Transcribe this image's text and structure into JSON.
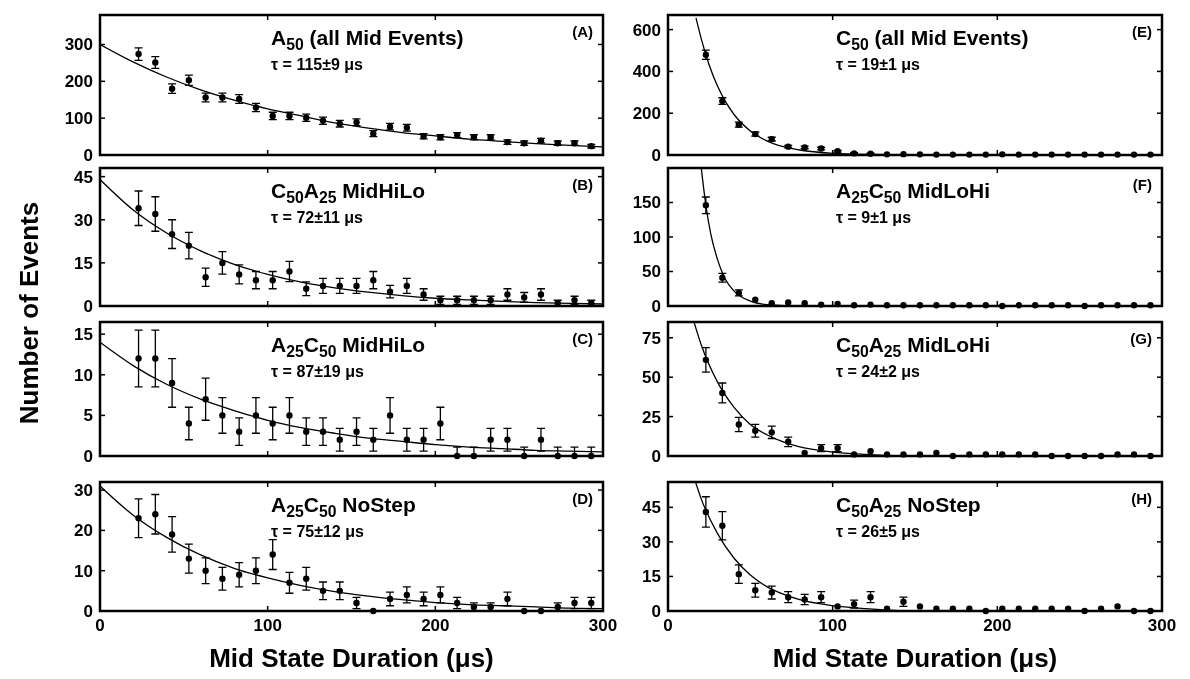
{
  "chart_data": [
    {
      "type": "scatter",
      "title": "A$_{50}$ (all Mid Events)",
      "ylabel": "Number of Events",
      "annotations": [
        "τ = 115±9 μs",
        "(A)"
      ],
      "xlim": [
        0,
        300
      ],
      "xticks": [
        0,
        100,
        200,
        300
      ],
      "ylim": [
        0,
        380
      ],
      "yticks": [
        0,
        100,
        200,
        300
      ],
      "tick_labels": "y",
      "grid": false,
      "x": [
        23,
        33,
        43,
        53,
        63,
        73,
        83,
        93,
        103,
        113,
        123,
        133,
        143,
        153,
        163,
        173,
        183,
        193,
        203,
        213,
        223,
        233,
        243,
        253,
        263,
        273,
        283,
        293
      ],
      "series": [
        {
          "type": "scatter",
          "marker": "circle",
          "color": "#000000",
          "values": [
            274,
            251,
            180,
            203,
            156,
            156,
            152,
            129,
            106,
            106,
            101,
            93,
            85,
            89,
            58,
            77,
            74,
            51,
            48,
            54,
            48,
            48,
            35,
            32,
            39,
            32,
            32,
            24
          ],
          "errors": [
            17,
            16,
            13,
            14,
            12,
            12,
            12,
            11,
            10,
            10,
            10,
            10,
            9,
            9,
            8,
            9,
            9,
            7,
            7,
            7,
            7,
            7,
            6,
            6,
            6,
            6,
            6,
            5
          ]
        },
        {
          "type": "line",
          "marker": "none",
          "color": "#000000",
          "x": [
            0,
            20,
            40,
            60,
            80,
            100,
            120,
            140,
            160,
            180,
            200,
            220,
            240,
            260,
            280,
            300
          ],
          "values": [
            300,
            252,
            211,
            177,
            149,
            125,
            106,
            87,
            73,
            61,
            52,
            43,
            37,
            31,
            26,
            22
          ]
        }
      ]
    },
    {
      "type": "scatter",
      "title": "C$_{50}$A$_{25}$ MidHiLo",
      "annotations": [
        "τ = 72±11 μs",
        "(B)"
      ],
      "xlim": [
        0,
        300
      ],
      "xticks": [
        0,
        100,
        200,
        300
      ],
      "ylim": [
        0,
        48
      ],
      "yticks": [
        0,
        15,
        30,
        45
      ],
      "tick_labels": "y",
      "grid": false,
      "x": [
        23,
        33,
        43,
        53,
        63,
        73,
        83,
        93,
        103,
        113,
        123,
        133,
        143,
        153,
        163,
        173,
        183,
        193,
        203,
        213,
        223,
        233,
        243,
        253,
        263,
        273,
        283,
        293
      ],
      "series": [
        {
          "type": "scatter",
          "marker": "circle",
          "color": "#000000",
          "values": [
            34,
            32,
            25,
            21,
            10,
            15,
            11,
            9,
            9,
            12,
            6,
            7,
            7,
            7,
            9,
            5,
            7,
            4,
            2,
            2,
            2,
            2,
            4,
            3,
            4,
            1,
            2,
            1
          ],
          "errors": [
            6,
            6,
            5,
            4.6,
            3.2,
            3.9,
            3.3,
            3,
            3,
            3.5,
            2.4,
            2.6,
            2.6,
            2.6,
            3,
            2.2,
            2.6,
            2,
            1.4,
            1.4,
            1.4,
            1.4,
            2,
            1.7,
            2,
            1,
            1.4,
            1
          ]
        },
        {
          "type": "line",
          "marker": "none",
          "color": "#000000",
          "x": [
            0,
            20,
            40,
            60,
            80,
            100,
            120,
            140,
            160,
            180,
            200,
            220,
            240,
            260,
            280,
            300
          ],
          "values": [
            44,
            33.3,
            25.3,
            19.2,
            14.5,
            11,
            8.3,
            6.3,
            4.8,
            3.6,
            2.7,
            2.1,
            1.6,
            1.2,
            0.9,
            0.7
          ]
        }
      ]
    },
    {
      "type": "scatter",
      "title": "A$_{25}$C$_{50}$ MidHiLo",
      "annotations": [
        "τ = 87±19 μs",
        "(C)"
      ],
      "xlim": [
        0,
        300
      ],
      "xticks": [
        0,
        100,
        200,
        300
      ],
      "ylim": [
        0,
        16.5
      ],
      "yticks": [
        0,
        5,
        10,
        15
      ],
      "tick_labels": "y",
      "grid": false,
      "x": [
        23,
        33,
        43,
        53,
        63,
        73,
        83,
        93,
        103,
        113,
        123,
        133,
        143,
        153,
        163,
        173,
        183,
        193,
        203,
        213,
        223,
        233,
        243,
        253,
        263,
        273,
        283,
        293
      ],
      "series": [
        {
          "type": "scatter",
          "marker": "circle",
          "color": "#000000",
          "values": [
            12,
            12,
            9,
            4,
            7,
            5,
            3,
            5,
            4,
            5,
            3,
            3,
            2,
            3,
            2,
            5,
            2,
            2,
            4,
            0,
            0,
            2,
            2,
            0,
            2,
            0,
            0,
            0
          ],
          "errors": [
            3.5,
            3.5,
            3,
            2,
            2.6,
            2.2,
            1.7,
            2.2,
            2,
            2.2,
            1.7,
            1.7,
            1.4,
            1.7,
            1.4,
            2.2,
            1.4,
            1.4,
            2,
            [
              0,
              1.1
            ],
            [
              0,
              1.1
            ],
            1.4,
            1.4,
            [
              0,
              1.1
            ],
            1.4,
            [
              0,
              1.1
            ],
            [
              0,
              1.1
            ],
            [
              0,
              1.1
            ]
          ]
        },
        {
          "type": "line",
          "marker": "none",
          "color": "#000000",
          "x": [
            0,
            20,
            40,
            60,
            80,
            100,
            120,
            140,
            160,
            180,
            200,
            220,
            240,
            260,
            280,
            300
          ],
          "values": [
            14,
            11.1,
            8.8,
            7,
            5.6,
            4.4,
            3.5,
            2.8,
            2.2,
            1.8,
            1.4,
            1.1,
            0.9,
            0.7,
            0.6,
            0.5
          ]
        }
      ]
    },
    {
      "type": "scatter",
      "title": "A$_{25}$C$_{50}$ NoStep",
      "xlabel": "Mid State Duration (μs)",
      "annotations": [
        "τ = 75±12 μs",
        "(D)"
      ],
      "xlim": [
        0,
        300
      ],
      "xticks": [
        0,
        100,
        200,
        300
      ],
      "ylim": [
        0,
        32
      ],
      "yticks": [
        0,
        10,
        20,
        30
      ],
      "grid": false,
      "x": [
        23,
        33,
        43,
        53,
        63,
        73,
        83,
        93,
        103,
        113,
        123,
        133,
        143,
        153,
        163,
        173,
        183,
        193,
        203,
        213,
        223,
        233,
        243,
        253,
        263,
        273,
        283,
        293
      ],
      "series": [
        {
          "type": "scatter",
          "marker": "circle",
          "color": "#000000",
          "values": [
            23,
            24,
            19,
            13,
            10,
            8,
            9,
            10,
            14,
            7,
            8,
            5,
            5,
            2,
            0,
            3,
            4,
            3,
            4,
            2,
            1,
            1,
            3,
            0,
            0,
            1,
            2,
            2
          ],
          "errors": [
            4.8,
            4.9,
            4.4,
            3.6,
            3.2,
            2.8,
            3,
            3.2,
            3.7,
            2.6,
            2.8,
            2.2,
            2.2,
            1.4,
            null,
            1.7,
            2,
            1.7,
            2,
            1.4,
            1,
            1,
            1.7,
            null,
            null,
            1,
            1.4,
            1.4
          ]
        },
        {
          "type": "line",
          "marker": "none",
          "color": "#000000",
          "x": [
            0,
            20,
            40,
            60,
            80,
            100,
            120,
            140,
            160,
            180,
            200,
            220,
            240,
            260,
            280,
            300
          ],
          "values": [
            31,
            23.7,
            18.2,
            13.9,
            10.6,
            8.2,
            6.3,
            4.8,
            3.7,
            2.8,
            2.1,
            1.6,
            1.3,
            1,
            0.7,
            0.6
          ]
        }
      ]
    },
    {
      "type": "scatter",
      "title": "C$_{50}$ (all Mid Events)",
      "annotations": [
        "τ = 19±1 μs",
        "(E)"
      ],
      "xlim": [
        0,
        300
      ],
      "xticks": [
        0,
        100,
        200,
        300
      ],
      "ylim": [
        0,
        670
      ],
      "yticks": [
        0,
        200,
        400,
        600
      ],
      "tick_labels": "y",
      "grid": false,
      "x": [
        23,
        33,
        43,
        53,
        63,
        73,
        83,
        93,
        103,
        113,
        123,
        133,
        143,
        153,
        163,
        173,
        183,
        193,
        203,
        213,
        223,
        233,
        243,
        253,
        263,
        273,
        283,
        293
      ],
      "series": [
        {
          "type": "scatter",
          "marker": "circle",
          "color": "#000000",
          "values": [
            480,
            258,
            145,
            100,
            76,
            40,
            36,
            31,
            18,
            8,
            6,
            3,
            4,
            3,
            2,
            2,
            2,
            2,
            3,
            2,
            2,
            2,
            2,
            2,
            2,
            2,
            2,
            2
          ],
          "errors": [
            22,
            16,
            12,
            10,
            9,
            6,
            6,
            6,
            4,
            3,
            2.5,
            null,
            null,
            null,
            null,
            null,
            null,
            null,
            null,
            null,
            null,
            null,
            null,
            null,
            null,
            null,
            null,
            null
          ]
        },
        {
          "type": "line",
          "marker": "none",
          "color": "#000000",
          "x": [
            17,
            20,
            25,
            30,
            35,
            40,
            50,
            60,
            70,
            80,
            100,
            120,
            150,
            200,
            300
          ],
          "values": [
            656,
            562,
            431,
            331,
            254,
            195,
            115,
            68,
            40,
            24,
            8,
            3,
            1,
            0,
            0
          ]
        }
      ]
    },
    {
      "type": "scatter",
      "title": "A$_{25}$C$_{50}$ MidLoHi",
      "annotations": [
        "τ = 9±1 μs",
        "(F)"
      ],
      "xlim": [
        0,
        300
      ],
      "xticks": [
        0,
        100,
        200,
        300
      ],
      "ylim": [
        0,
        200
      ],
      "yticks": [
        0,
        50,
        100,
        150
      ],
      "tick_labels": "y",
      "grid": false,
      "x": [
        23,
        33,
        43,
        53,
        63,
        73,
        83,
        93,
        103,
        113,
        123,
        133,
        143,
        153,
        163,
        173,
        183,
        193,
        203,
        213,
        223,
        233,
        243,
        253,
        263,
        273,
        283,
        293
      ],
      "series": [
        {
          "type": "scatter",
          "marker": "circle",
          "color": "#000000",
          "values": [
            146,
            41,
            19,
            9,
            4,
            5,
            4,
            2,
            3,
            1,
            2,
            1,
            1,
            1,
            1,
            1,
            1,
            1,
            0,
            1,
            1,
            1,
            1,
            0,
            1,
            1,
            1,
            1
          ],
          "errors": [
            12,
            6.4,
            4.4,
            null,
            null,
            null,
            null,
            null,
            null,
            null,
            null,
            null,
            null,
            null,
            null,
            null,
            null,
            null,
            null,
            null,
            null,
            null,
            null,
            null,
            null,
            null,
            null,
            null
          ]
        },
        {
          "type": "line",
          "marker": "none",
          "color": "#000000",
          "x": [
            20.2,
            23,
            26,
            30,
            35,
            40,
            50,
            60,
            80,
            100,
            300
          ],
          "values": [
            200,
            146,
            104,
            68,
            38,
            22,
            7,
            2,
            0,
            0,
            0
          ]
        }
      ]
    },
    {
      "type": "scatter",
      "title": "C$_{50}$A$_{25}$ MidLoHi",
      "annotations": [
        "τ = 24±2 μs",
        "(G)"
      ],
      "xlim": [
        0,
        300
      ],
      "xticks": [
        0,
        100,
        200,
        300
      ],
      "ylim": [
        0,
        85
      ],
      "yticks": [
        0,
        25,
        50,
        75
      ],
      "tick_labels": "y",
      "grid": false,
      "x": [
        23,
        33,
        43,
        53,
        63,
        73,
        83,
        93,
        103,
        113,
        123,
        133,
        143,
        153,
        163,
        173,
        183,
        193,
        203,
        213,
        223,
        233,
        243,
        253,
        263,
        273,
        283,
        293
      ],
      "series": [
        {
          "type": "scatter",
          "marker": "circle",
          "color": "#000000",
          "values": [
            61,
            40,
            20,
            16,
            15,
            9,
            2,
            5,
            5,
            1,
            3,
            1,
            1,
            1,
            2,
            0,
            1,
            1,
            1,
            1,
            1,
            0,
            0,
            0,
            0,
            1,
            1,
            0
          ],
          "errors": [
            7.8,
            6.3,
            4.5,
            4,
            3.9,
            3,
            null,
            2.2,
            2.2,
            null,
            null,
            null,
            null,
            null,
            null,
            null,
            null,
            null,
            null,
            null,
            null,
            null,
            null,
            null,
            null,
            null,
            null,
            null
          ]
        },
        {
          "type": "line",
          "marker": "none",
          "color": "#000000",
          "x": [
            15.8,
            20,
            30,
            40,
            50,
            60,
            70,
            80,
            100,
            120,
            150,
            200,
            300
          ],
          "values": [
            85,
            71,
            47,
            31,
            20,
            13.5,
            8.9,
            5.8,
            2.5,
            1,
            0,
            0,
            0
          ]
        }
      ]
    },
    {
      "type": "scatter",
      "title": "C$_{50}$A$_{25}$ NoStep",
      "xlabel": "Mid State Duration (μs)",
      "annotations": [
        "τ = 26±5 μs",
        "(H)"
      ],
      "xlim": [
        0,
        300
      ],
      "xticks": [
        0,
        100,
        200,
        300
      ],
      "ylim": [
        0,
        56
      ],
      "yticks": [
        0,
        15,
        30,
        45
      ],
      "grid": false,
      "x": [
        23,
        33,
        43,
        53,
        63,
        73,
        83,
        93,
        103,
        113,
        123,
        133,
        143,
        153,
        163,
        173,
        183,
        193,
        203,
        213,
        223,
        233,
        243,
        253,
        263,
        273,
        283,
        293
      ],
      "series": [
        {
          "type": "scatter",
          "marker": "circle",
          "color": "#000000",
          "values": [
            43,
            37,
            16,
            9,
            8,
            6,
            5,
            6,
            2,
            3,
            6,
            1,
            4,
            2,
            1,
            1,
            1,
            0,
            1,
            1,
            1,
            1,
            1,
            0,
            1,
            2,
            0,
            0
          ],
          "errors": [
            6.6,
            6.1,
            4,
            3,
            2.8,
            2.4,
            2.2,
            2.4,
            null,
            1.7,
            2.4,
            null,
            2,
            null,
            null,
            null,
            null,
            null,
            null,
            null,
            null,
            null,
            null,
            null,
            null,
            null,
            null,
            null
          ]
        },
        {
          "type": "line",
          "marker": "none",
          "color": "#000000",
          "x": [
            16.7,
            20,
            30,
            40,
            50,
            60,
            70,
            80,
            100,
            120,
            150,
            200,
            300
          ],
          "values": [
            56,
            49,
            33.7,
            23,
            15.6,
            10.6,
            7.3,
            4.9,
            2.3,
            1,
            0,
            0,
            0
          ]
        }
      ]
    }
  ]
}
